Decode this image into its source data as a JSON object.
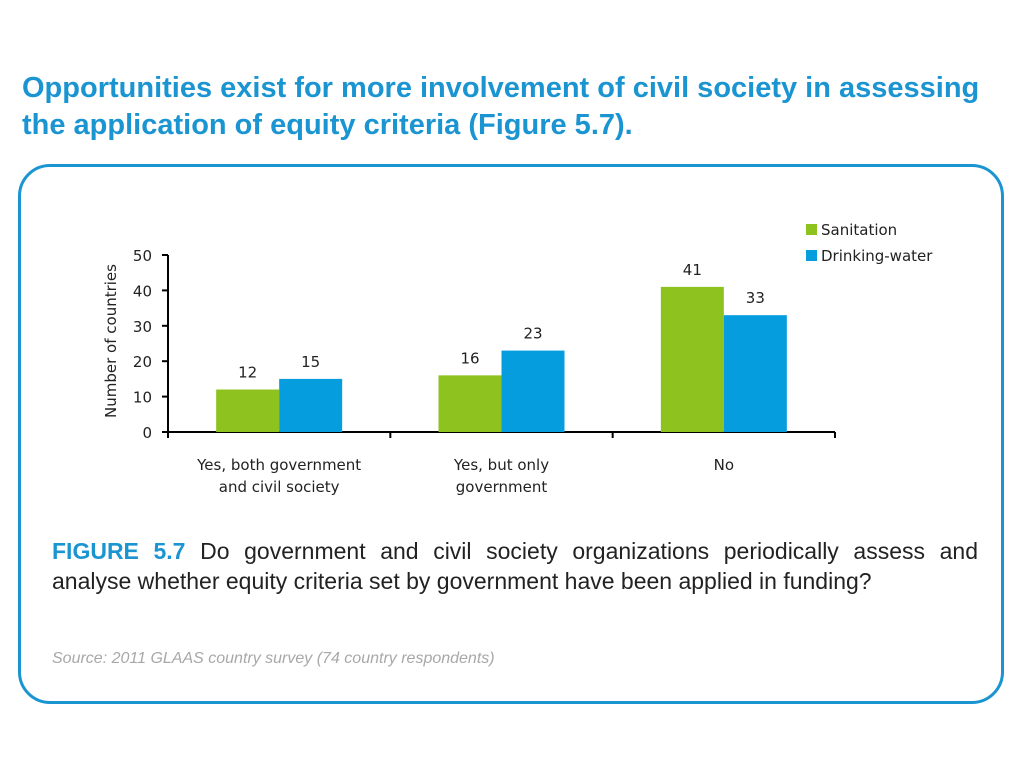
{
  "slide": {
    "headline": "Opportunities exist for more involvement of civil society in assessing the application of equity criteria (Figure 5.7).",
    "figure_label": "FIGURE 5.7",
    "figure_caption": "Do government and civil society organizations periodically assess and analyse whether equity criteria set by government have been applied in funding?",
    "source": "Source: 2011 GLAAS country survey (74 country respondents)"
  },
  "colors": {
    "accent": "#1b95d2",
    "sanitation": "#8dc21f",
    "drinking_water": "#069ddf"
  },
  "chart_data": {
    "type": "bar",
    "title": "",
    "xlabel": "",
    "ylabel": "Number of countries",
    "ylim": [
      0,
      50
    ],
    "yticks": [
      0,
      10,
      20,
      30,
      40,
      50
    ],
    "grid": false,
    "legend_position": "top-right",
    "categories": [
      [
        "Yes, both government",
        "and civil society"
      ],
      [
        "Yes, but only",
        "government"
      ],
      [
        "No"
      ]
    ],
    "series": [
      {
        "name": "Sanitation",
        "color": "#8dc21f",
        "values": [
          12,
          16,
          41
        ]
      },
      {
        "name": "Drinking-water",
        "color": "#069ddf",
        "values": [
          15,
          23,
          33
        ]
      }
    ]
  }
}
